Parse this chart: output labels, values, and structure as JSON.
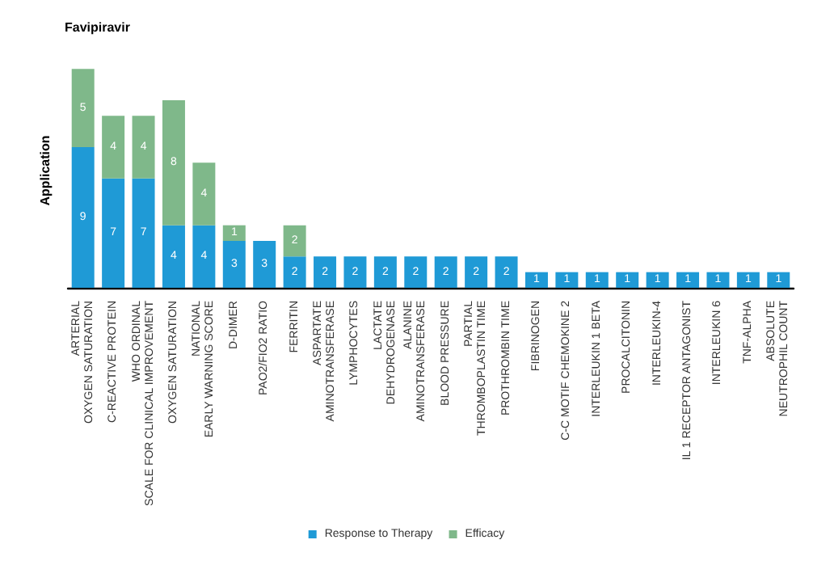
{
  "chart_data": {
    "type": "bar",
    "title": "Favipiravir",
    "ylabel": "Application",
    "stacked": true,
    "data_labels": true,
    "legend": "bottom",
    "grid": false,
    "tick_labels": "x",
    "categories": [
      "ARTERIAL\nOXYGEN SATURATION",
      "C-REACTIVE PROTEIN",
      "WHO ORDINAL\nSCALE FOR CLINICAL IMPROVEMENT",
      "OXYGEN SATURATION",
      "NATIONAL\nEARLY WARNING SCORE",
      "D-DIMER",
      "PAO2/FIO2 RATIO",
      "FERRITIN",
      "ASPARTATE\nAMINOTRANSFERASE",
      "LYMPHOCYTES",
      "LACTATE\nDEHYDROGENASE",
      "ALANINE\nAMINOTRANSFERASE",
      "BLOOD PRESSURE",
      "PARTIAL\nTHROMBOPLASTIN TIME",
      "PROTHROMBIN TIME",
      "FIBRINOGEN",
      "C-C MOTIF CHEMOKINE 2",
      "INTERLEUKIN 1 BETA",
      "PROCALCITONIN",
      "INTERLEUKIN-4",
      "IL 1 RECEPTOR ANTAGONIST",
      "INTERLEUKIN 6",
      "TNF-ALPHA",
      "ABSOLUTE\nNEUTROPHIL COUNT"
    ],
    "series": [
      {
        "name": "Response to Therapy",
        "color": "#1f9ad6",
        "values": [
          9,
          7,
          7,
          4,
          4,
          3,
          3,
          2,
          2,
          2,
          2,
          2,
          2,
          2,
          2,
          1,
          1,
          1,
          1,
          1,
          1,
          1,
          1,
          1
        ]
      },
      {
        "name": "Efficacy",
        "color": "#7fb88a",
        "values": [
          5,
          4,
          4,
          8,
          4,
          1,
          null,
          2,
          null,
          null,
          null,
          null,
          null,
          null,
          null,
          null,
          null,
          null,
          null,
          null,
          null,
          null,
          null,
          null
        ]
      }
    ]
  }
}
